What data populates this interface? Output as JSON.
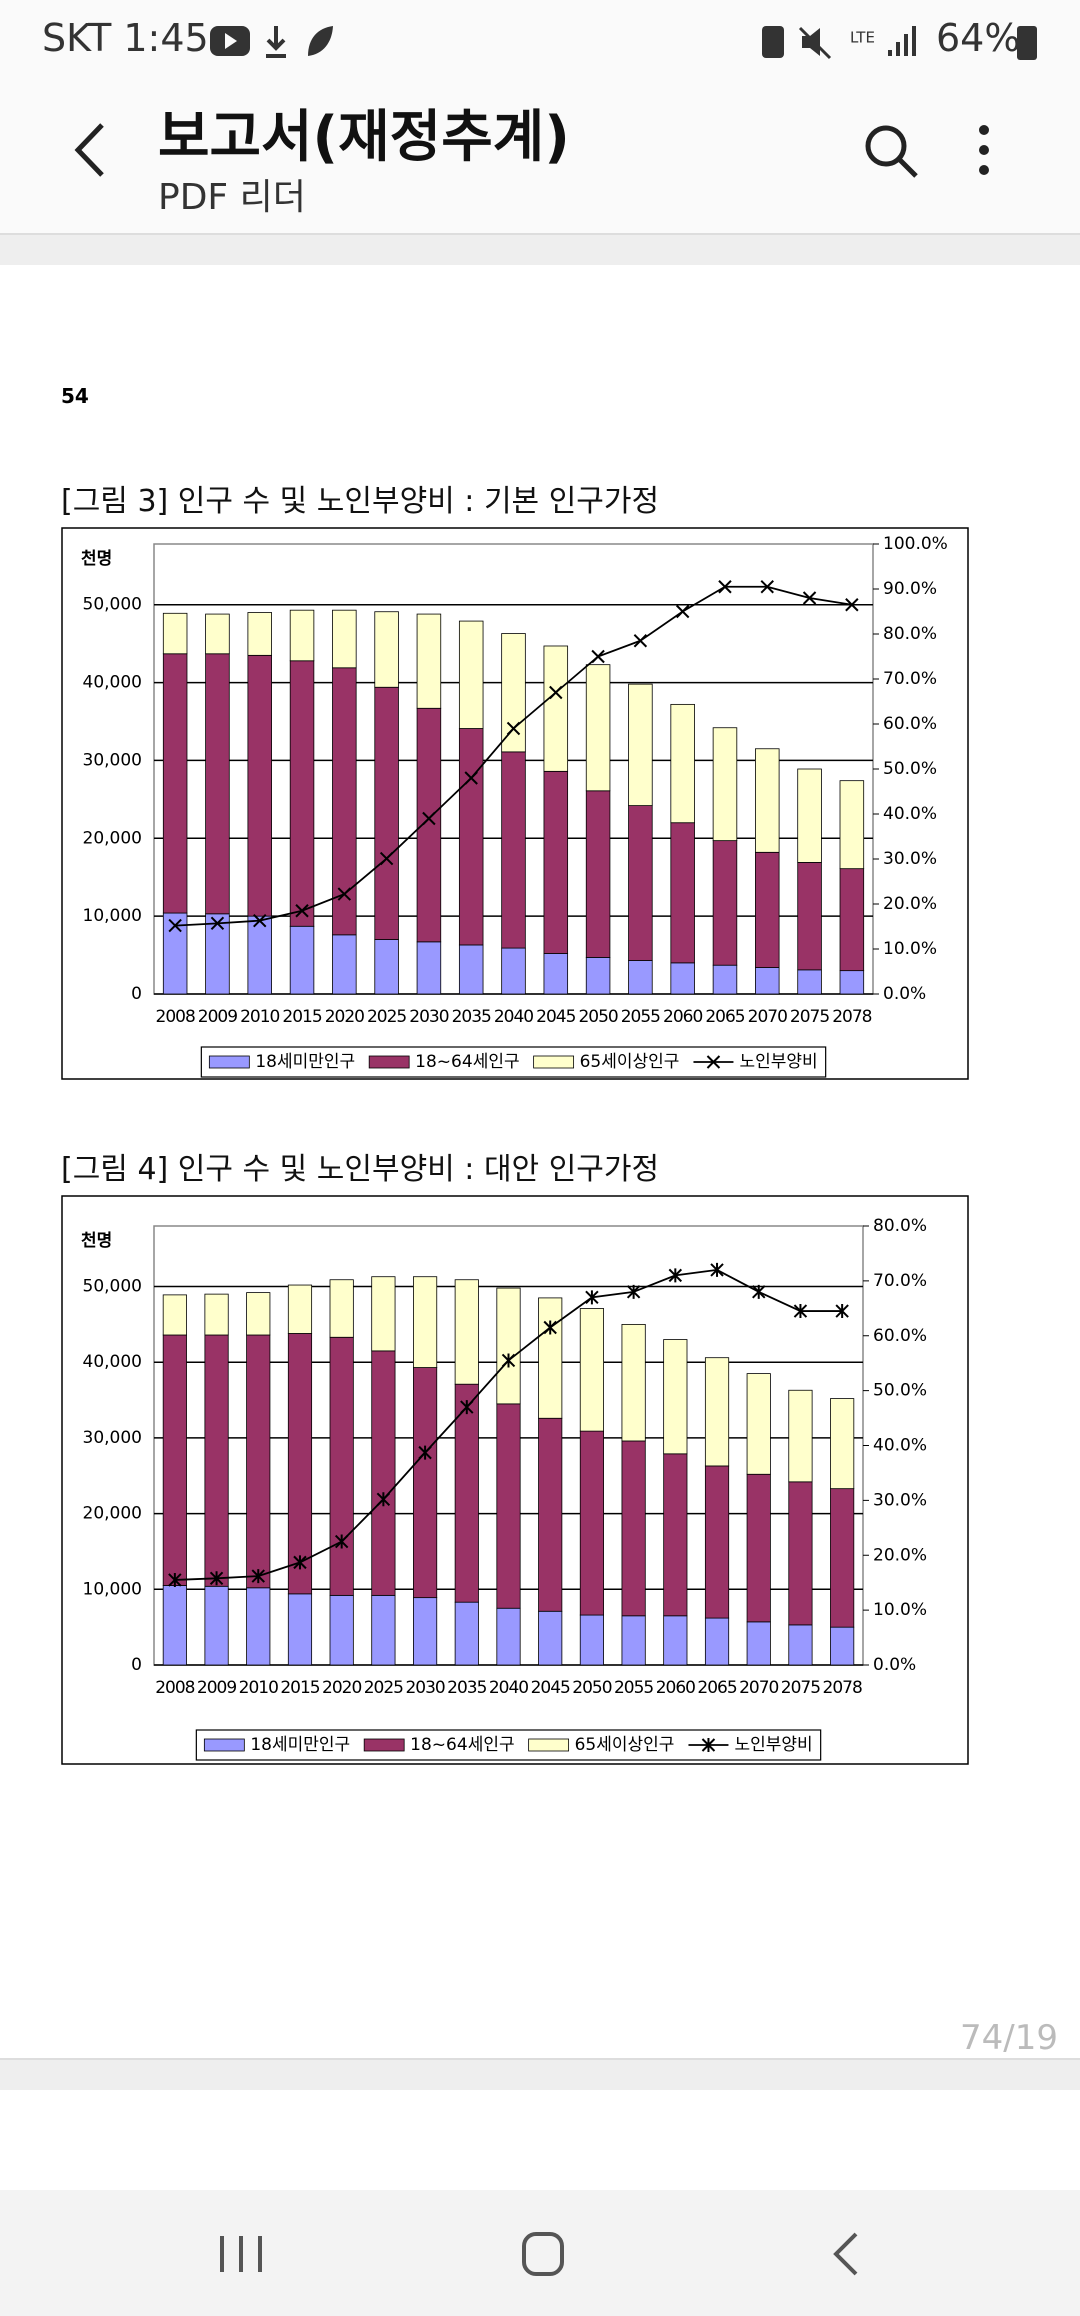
{
  "status_bar": {
    "carrier_time": "SKT 1:45",
    "network": "LTE",
    "battery": "64%"
  },
  "app_bar": {
    "title": "보고서(재정추계)",
    "subtitle": "PDF 리더"
  },
  "document": {
    "page_number": "54",
    "captions": [
      "[그림 3] 인구 수 및 노인부양비 : 기본 인구가정",
      "[그림 4] 인구 수 및 노인부양비 : 대안 인구가정"
    ],
    "page_indicator": "74/19"
  },
  "chart_data": [
    {
      "type": "bar",
      "stacked": true,
      "y_label": "천명",
      "grid": true,
      "categories": [
        "2008",
        "2009",
        "2010",
        "2015",
        "2020",
        "2025",
        "2030",
        "2035",
        "2040",
        "2045",
        "2050",
        "2055",
        "2060",
        "2065",
        "2070",
        "2075",
        "2078"
      ],
      "ylim": [
        0,
        57800
      ],
      "yticks": [
        0,
        {
          "value": 10000,
          "label": "10,000"
        },
        {
          "value": 20000,
          "label": "20,000"
        },
        {
          "value": 30000,
          "label": "30,000"
        },
        {
          "value": 40000,
          "label": "40,000"
        },
        {
          "value": 50000,
          "label": "50,000"
        }
      ],
      "y2lim": [
        0,
        100
      ],
      "y2ticks": [
        {
          "value": 0,
          "label": "0.0%"
        },
        {
          "value": 10,
          "label": "10.0%"
        },
        {
          "value": 20,
          "label": "20.0%"
        },
        {
          "value": 30,
          "label": "30.0%"
        },
        {
          "value": 40,
          "label": "40.0%"
        },
        {
          "value": 50,
          "label": "50.0%"
        },
        {
          "value": 60,
          "label": "60.0%"
        },
        {
          "value": 70,
          "label": "70.0%"
        },
        {
          "value": 80,
          "label": "80.0%"
        },
        {
          "value": 90,
          "label": "90.0%"
        },
        {
          "value": 100,
          "label": "100.0%"
        }
      ],
      "series": [
        {
          "name": "18세미만인구",
          "color": "#9999ff",
          "values": [
            10400,
            10300,
            10000,
            8700,
            7600,
            7000,
            6700,
            6300,
            5900,
            5200,
            4700,
            4300,
            4000,
            3700,
            3400,
            3100,
            3000
          ]
        },
        {
          "name": "18~64세인구",
          "color": "#993366",
          "values": [
            33300,
            33400,
            33500,
            34100,
            34300,
            32400,
            30000,
            27800,
            25200,
            23400,
            21400,
            19900,
            18000,
            16000,
            14800,
            13800,
            13100
          ]
        },
        {
          "name": "65세이상인구",
          "color": "#ffffcc",
          "values": [
            5200,
            5100,
            5500,
            6500,
            7400,
            9700,
            12100,
            13800,
            15200,
            16100,
            16200,
            15600,
            15200,
            14500,
            13300,
            12000,
            11300
          ]
        },
        {
          "name": "노인부양비",
          "color": "#000000",
          "type": "line",
          "axis": "y2",
          "marker": "x",
          "values": [
            15.2,
            15.7,
            16.3,
            18.5,
            22.2,
            30.1,
            39.0,
            48.0,
            59.0,
            67.0,
            75.0,
            78.5,
            85.0,
            90.5,
            90.5,
            88.0,
            86.5
          ]
        }
      ]
    },
    {
      "type": "bar",
      "stacked": true,
      "y_label": "천명",
      "grid": true,
      "categories": [
        "2008",
        "2009",
        "2010",
        "2015",
        "2020",
        "2025",
        "2030",
        "2035",
        "2040",
        "2045",
        "2050",
        "2055",
        "2060",
        "2065",
        "2070",
        "2075",
        "2078"
      ],
      "ylim": [
        0,
        58000
      ],
      "yticks": [
        0,
        {
          "value": 10000,
          "label": "10,000"
        },
        {
          "value": 20000,
          "label": "20,000"
        },
        {
          "value": 30000,
          "label": "30,000"
        },
        {
          "value": 40000,
          "label": "40,000"
        },
        {
          "value": 50000,
          "label": "50,000"
        }
      ],
      "y2lim": [
        0,
        80
      ],
      "y2ticks": [
        {
          "value": 0,
          "label": "0.0%"
        },
        {
          "value": 10,
          "label": "10.0%"
        },
        {
          "value": 20,
          "label": "20.0%"
        },
        {
          "value": 30,
          "label": "30.0%"
        },
        {
          "value": 40,
          "label": "40.0%"
        },
        {
          "value": 50,
          "label": "50.0%"
        },
        {
          "value": 60,
          "label": "60.0%"
        },
        {
          "value": 70,
          "label": "70.0%"
        },
        {
          "value": 80,
          "label": "80.0%"
        }
      ],
      "series": [
        {
          "name": "18세미만인구",
          "color": "#9999ff",
          "values": [
            10500,
            10400,
            10200,
            9400,
            9200,
            9200,
            8900,
            8300,
            7500,
            7100,
            6600,
            6500,
            6500,
            6200,
            5700,
            5300,
            5000
          ]
        },
        {
          "name": "18~64세인구",
          "color": "#993366",
          "values": [
            33100,
            33200,
            33400,
            34400,
            34100,
            32300,
            30400,
            28800,
            27000,
            25500,
            24300,
            23100,
            21400,
            20100,
            19500,
            18900,
            18300
          ]
        },
        {
          "name": "65세이상인구",
          "color": "#ffffcc",
          "values": [
            5300,
            5400,
            5600,
            6400,
            7600,
            9800,
            12000,
            13800,
            15300,
            15900,
            16200,
            15400,
            15100,
            14300,
            13300,
            12100,
            11900
          ]
        },
        {
          "name": "노인부양비",
          "color": "#000000",
          "type": "line",
          "axis": "y2",
          "marker": "asterisk",
          "values": [
            15.5,
            15.8,
            16.2,
            18.7,
            22.5,
            30.2,
            38.7,
            47.0,
            55.5,
            61.5,
            67.0,
            68.0,
            71.0,
            72.0,
            68.0,
            64.5,
            64.5
          ]
        }
      ]
    }
  ]
}
